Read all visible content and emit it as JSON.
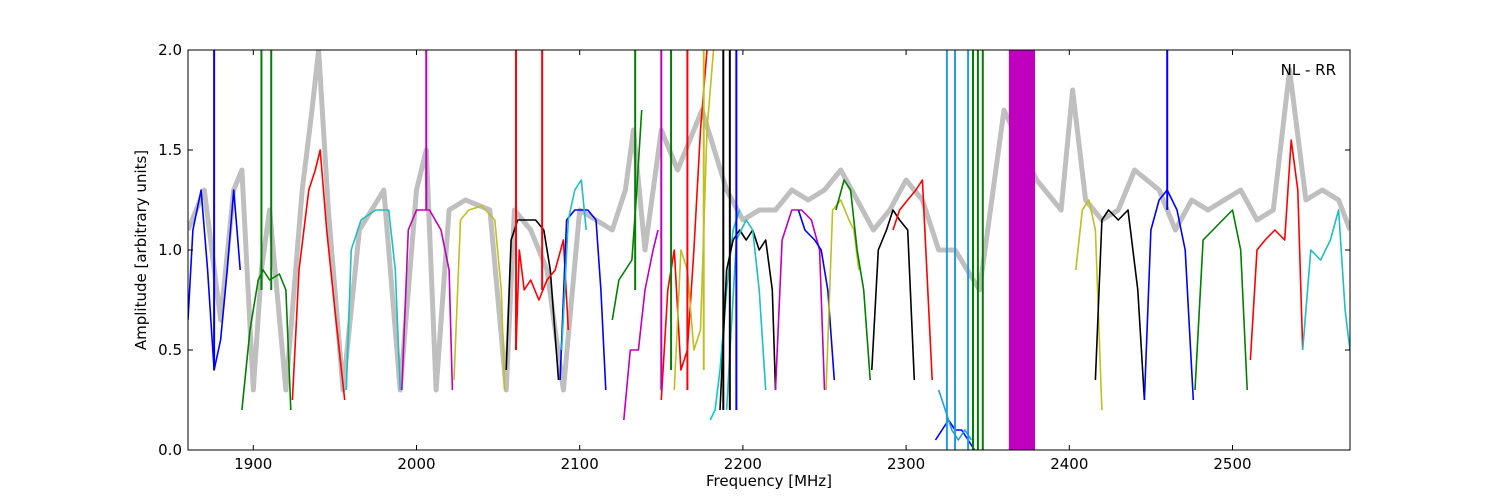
{
  "chart_data": {
    "type": "line",
    "title": "",
    "xlabel": "Frequency [MHz]",
    "ylabel": "Amplitude [arbitrary units]",
    "xlim": [
      1860,
      2572
    ],
    "ylim": [
      0,
      2
    ],
    "xticks": [
      1900,
      2000,
      2100,
      2200,
      2300,
      2400,
      2500
    ],
    "yticks": [
      0.0,
      0.5,
      1.0,
      1.5,
      2.0
    ],
    "xtick_labels": [
      "1900",
      "2000",
      "2100",
      "2200",
      "2300",
      "2400",
      "2500"
    ],
    "ytick_labels": [
      "0.0",
      "0.5",
      "1.0",
      "1.5",
      "2.0"
    ],
    "annotation": "NL - RR",
    "grid": false,
    "colors": {
      "background_trace": "#bfbfbf",
      "blue": "#0000ff",
      "green": "#008000",
      "red": "#ff0000",
      "cyan": "#1fbfbf",
      "magenta": "#bf00bf",
      "yellow": "#bfbf1f",
      "black": "#000000",
      "bright_cyan": "#00cccc",
      "steel_blue": "#1f9fdf"
    },
    "background_trace": {
      "x": [
        1860,
        1870,
        1880,
        1888,
        1893,
        1900,
        1905,
        1910,
        1920,
        1930,
        1936,
        1940,
        1946,
        1955,
        1965,
        1980,
        1990,
        2000,
        2006,
        2012,
        2020,
        2030,
        2045,
        2055,
        2060,
        2070,
        2080,
        2090,
        2100,
        2110,
        2120,
        2128,
        2133,
        2140,
        2150,
        2160,
        2175,
        2190,
        2200,
        2210,
        2220,
        2230,
        2240,
        2250,
        2260,
        2270,
        2280,
        2290,
        2300,
        2310,
        2320,
        2330,
        2345,
        2350,
        2360,
        2380,
        2395,
        2402,
        2410,
        2420,
        2430,
        2440,
        2455,
        2465,
        2475,
        2485,
        2495,
        2505,
        2515,
        2525,
        2535,
        2545,
        2555,
        2565,
        2572
      ],
      "y": [
        1.1,
        1.3,
        0.65,
        1.3,
        1.4,
        0.3,
        0.9,
        1.2,
        0.3,
        1.3,
        1.7,
        2.0,
        1.2,
        0.3,
        1.1,
        1.3,
        0.3,
        1.3,
        1.5,
        0.3,
        1.2,
        1.25,
        1.2,
        0.3,
        1.2,
        1.1,
        0.9,
        0.3,
        1.2,
        1.15,
        1.1,
        1.3,
        1.6,
        1.0,
        1.6,
        1.4,
        1.7,
        1.3,
        1.15,
        1.2,
        1.2,
        1.3,
        1.25,
        1.3,
        1.4,
        1.25,
        1.1,
        1.2,
        1.35,
        1.25,
        1.0,
        1.0,
        0.8,
        1.1,
        1.7,
        1.35,
        1.2,
        1.8,
        1.25,
        1.15,
        1.2,
        1.4,
        1.3,
        1.1,
        1.25,
        1.2,
        1.25,
        1.3,
        1.15,
        1.2,
        1.9,
        1.25,
        1.3,
        1.25,
        1.1
      ]
    },
    "series": [
      {
        "color": "blue",
        "x": [
          1860,
          1863,
          1868,
          1872,
          1876,
          1880,
          1884,
          1888,
          1890,
          1892
        ],
        "y": [
          0.65,
          1.1,
          1.3,
          0.9,
          0.4,
          0.55,
          0.9,
          1.3,
          1.1,
          0.9
        ]
      },
      {
        "color": "green",
        "x": [
          1893,
          1898,
          1903,
          1906,
          1910,
          1916,
          1920,
          1923
        ],
        "y": [
          0.2,
          0.6,
          0.85,
          0.9,
          0.85,
          0.88,
          0.8,
          0.2
        ]
      },
      {
        "color": "red",
        "x": [
          1924,
          1928,
          1934,
          1938,
          1941,
          1945,
          1950,
          1956
        ],
        "y": [
          0.25,
          0.9,
          1.3,
          1.4,
          1.5,
          1.1,
          0.7,
          0.25
        ]
      },
      {
        "color": "cyan",
        "x": [
          1957,
          1960,
          1966,
          1975,
          1983,
          1987,
          1990
        ],
        "y": [
          0.3,
          1.0,
          1.15,
          1.2,
          1.2,
          0.9,
          0.3
        ]
      },
      {
        "color": "magenta",
        "x": [
          1991,
          1995,
          2000,
          2008,
          2015,
          2020,
          2022
        ],
        "y": [
          0.3,
          1.1,
          1.2,
          1.2,
          1.1,
          0.9,
          0.3
        ]
      },
      {
        "color": "yellow",
        "x": [
          2023,
          2027,
          2032,
          2040,
          2048,
          2052,
          2054
        ],
        "y": [
          0.35,
          1.15,
          1.2,
          1.22,
          1.15,
          0.8,
          0.3
        ]
      },
      {
        "color": "black",
        "x": [
          2055,
          2058,
          2062,
          2068,
          2073,
          2078,
          2082,
          2087
        ],
        "y": [
          0.4,
          1.05,
          1.15,
          1.15,
          1.15,
          1.1,
          0.9,
          0.35
        ]
      },
      {
        "color": "red",
        "x": [
          2061,
          2063,
          2066,
          2070,
          2075,
          2080,
          2085,
          2090,
          2093
        ],
        "y": [
          0.5,
          1.0,
          0.8,
          0.85,
          0.75,
          0.85,
          0.9,
          1.05,
          0.6
        ]
      },
      {
        "color": "blue",
        "x": [
          2088,
          2092,
          2097,
          2105,
          2110,
          2113,
          2116
        ],
        "y": [
          0.35,
          1.15,
          1.2,
          1.2,
          1.15,
          0.8,
          0.3
        ]
      },
      {
        "color": "cyan",
        "x": [
          2089,
          2093,
          2097,
          2101,
          2104
        ],
        "y": [
          0.5,
          1.15,
          1.3,
          1.35,
          1.1
        ]
      },
      {
        "color": "green",
        "x": [
          2120,
          2124,
          2128,
          2132,
          2135,
          2138
        ],
        "y": [
          0.65,
          0.85,
          0.9,
          0.95,
          1.3,
          1.7
        ]
      },
      {
        "color": "magenta",
        "x": [
          2127,
          2131,
          2136,
          2140,
          2145,
          2148
        ],
        "y": [
          0.15,
          0.5,
          0.5,
          0.8,
          1.0,
          1.1
        ]
      },
      {
        "color": "red",
        "x": [
          2150,
          2154,
          2158,
          2162,
          2166,
          2170,
          2174,
          2178
        ],
        "y": [
          0.25,
          0.8,
          1.0,
          0.4,
          0.5,
          1.0,
          1.6,
          2.0
        ]
      },
      {
        "color": "yellow",
        "x": [
          2158,
          2162,
          2166,
          2170,
          2174,
          2178,
          2182
        ],
        "y": [
          0.3,
          1.0,
          0.9,
          0.5,
          0.6,
          1.6,
          2.0
        ]
      },
      {
        "color": "bright_cyan",
        "x": [
          2180,
          2183,
          2186,
          2190,
          2194,
          2198
        ],
        "y": [
          0.15,
          0.2,
          0.4,
          0.8,
          1.1,
          1.2
        ]
      },
      {
        "color": "black",
        "x": [
          2186,
          2190,
          2194,
          2198,
          2202,
          2206,
          2210,
          2214,
          2218,
          2220
        ],
        "y": [
          0.2,
          0.9,
          1.05,
          1.1,
          1.05,
          1.1,
          1.0,
          1.05,
          0.8,
          0.3
        ]
      },
      {
        "color": "cyan",
        "x": [
          2190,
          2196,
          2202,
          2206,
          2210,
          2214
        ],
        "y": [
          0.2,
          1.05,
          1.15,
          1.1,
          0.8,
          0.3
        ]
      },
      {
        "color": "magenta",
        "x": [
          2220,
          2224,
          2230,
          2236,
          2242,
          2247,
          2250
        ],
        "y": [
          0.3,
          1.05,
          1.2,
          1.2,
          1.15,
          1.0,
          0.3
        ]
      },
      {
        "color": "blue",
        "x": [
          2234,
          2238,
          2244,
          2248,
          2252,
          2256
        ],
        "y": [
          1.2,
          1.1,
          1.05,
          1.0,
          0.8,
          0.35
        ]
      },
      {
        "color": "yellow",
        "x": [
          2251,
          2255,
          2260,
          2265,
          2268,
          2271
        ],
        "y": [
          0.3,
          1.2,
          1.25,
          1.15,
          1.1,
          0.9
        ]
      },
      {
        "color": "green",
        "x": [
          2257,
          2262,
          2266,
          2270,
          2274,
          2278
        ],
        "y": [
          1.2,
          1.35,
          1.3,
          1.0,
          0.8,
          0.35
        ]
      },
      {
        "color": "black",
        "x": [
          2279,
          2283,
          2288,
          2292,
          2296,
          2301,
          2305
        ],
        "y": [
          0.4,
          1.0,
          1.1,
          1.2,
          1.15,
          1.1,
          0.35
        ]
      },
      {
        "color": "red",
        "x": [
          2292,
          2296,
          2301,
          2306,
          2310,
          2316
        ],
        "y": [
          1.1,
          1.2,
          1.25,
          1.3,
          1.35,
          0.35
        ]
      },
      {
        "color": "blue",
        "x": [
          2318,
          2322,
          2326,
          2330,
          2334,
          2338,
          2342
        ],
        "y": [
          0.05,
          0.1,
          0.15,
          0.1,
          0.1,
          0.05,
          0.0
        ]
      },
      {
        "color": "steel_blue",
        "x": [
          2320,
          2324,
          2328,
          2332,
          2336,
          2340
        ],
        "y": [
          0.3,
          0.2,
          0.1,
          0.05,
          0.1,
          0.05
        ]
      },
      {
        "color": "yellow",
        "x": [
          2404,
          2408,
          2412,
          2416,
          2420
        ],
        "y": [
          0.9,
          1.2,
          1.25,
          1.1,
          0.2
        ]
      },
      {
        "color": "black",
        "x": [
          2416,
          2420,
          2424,
          2430,
          2436,
          2442,
          2446
        ],
        "y": [
          0.35,
          1.15,
          1.2,
          1.15,
          1.2,
          0.8,
          0.25
        ]
      },
      {
        "color": "blue",
        "x": [
          2446,
          2450,
          2455,
          2460,
          2466,
          2471,
          2476
        ],
        "y": [
          0.25,
          1.1,
          1.25,
          1.3,
          1.2,
          1.0,
          0.25
        ]
      },
      {
        "color": "green",
        "x": [
          2477,
          2482,
          2488,
          2494,
          2500,
          2505,
          2509
        ],
        "y": [
          0.3,
          1.05,
          1.1,
          1.15,
          1.2,
          1.0,
          0.3
        ]
      },
      {
        "color": "red",
        "x": [
          2511,
          2515,
          2520,
          2526,
          2532,
          2536,
          2540,
          2543
        ],
        "y": [
          0.45,
          1.0,
          1.05,
          1.1,
          1.05,
          1.55,
          1.3,
          0.5
        ]
      },
      {
        "color": "cyan",
        "x": [
          2543,
          2548,
          2554,
          2560,
          2565,
          2569,
          2572
        ],
        "y": [
          0.5,
          1.0,
          0.95,
          1.05,
          1.2,
          0.7,
          0.5
        ]
      }
    ],
    "spikes": [
      {
        "color": "blue",
        "x": 1876,
        "y0": 0.4,
        "y1": 2.0
      },
      {
        "color": "green",
        "x": 1905,
        "y0": 0.8,
        "y1": 2.0
      },
      {
        "color": "green",
        "x": 1911,
        "y0": 0.8,
        "y1": 2.0
      },
      {
        "color": "magenta",
        "x": 2006,
        "y0": 1.2,
        "y1": 2.0
      },
      {
        "color": "red",
        "x": 2061,
        "y0": 0.5,
        "y1": 2.0
      },
      {
        "color": "red",
        "x": 2077,
        "y0": 0.8,
        "y1": 2.0
      },
      {
        "color": "green",
        "x": 2134,
        "y0": 0.8,
        "y1": 2.0
      },
      {
        "color": "magenta",
        "x": 2150,
        "y0": 0.3,
        "y1": 2.0
      },
      {
        "color": "green",
        "x": 2156,
        "y0": 0.4,
        "y1": 2.0
      },
      {
        "color": "red",
        "x": 2166,
        "y0": 0.3,
        "y1": 2.0
      },
      {
        "color": "yellow",
        "x": 2176,
        "y0": 0.4,
        "y1": 2.0
      },
      {
        "color": "black",
        "x": 2188,
        "y0": 0.2,
        "y1": 2.0
      },
      {
        "color": "black",
        "x": 2192,
        "y0": 0.2,
        "y1": 2.0
      },
      {
        "color": "blue",
        "x": 2196,
        "y0": 0.2,
        "y1": 2.0
      },
      {
        "color": "steel_blue",
        "x": 2325,
        "y0": 0.0,
        "y1": 2.0
      },
      {
        "color": "steel_blue",
        "x": 2330,
        "y0": 0.0,
        "y1": 2.0
      },
      {
        "color": "steel_blue",
        "x": 2338,
        "y0": 0.0,
        "y1": 2.0
      },
      {
        "color": "green",
        "x": 2341,
        "y0": 0.0,
        "y1": 2.0
      },
      {
        "color": "green",
        "x": 2344,
        "y0": 0.0,
        "y1": 2.0
      },
      {
        "color": "green",
        "x": 2347,
        "y0": 0.0,
        "y1": 2.0
      },
      {
        "color": "blue",
        "x": 2460,
        "y0": 1.2,
        "y1": 2.0
      }
    ],
    "bands": [
      {
        "color": "magenta",
        "x0": 2363,
        "x1": 2379,
        "y0": 0.0,
        "y1": 2.0
      }
    ]
  }
}
